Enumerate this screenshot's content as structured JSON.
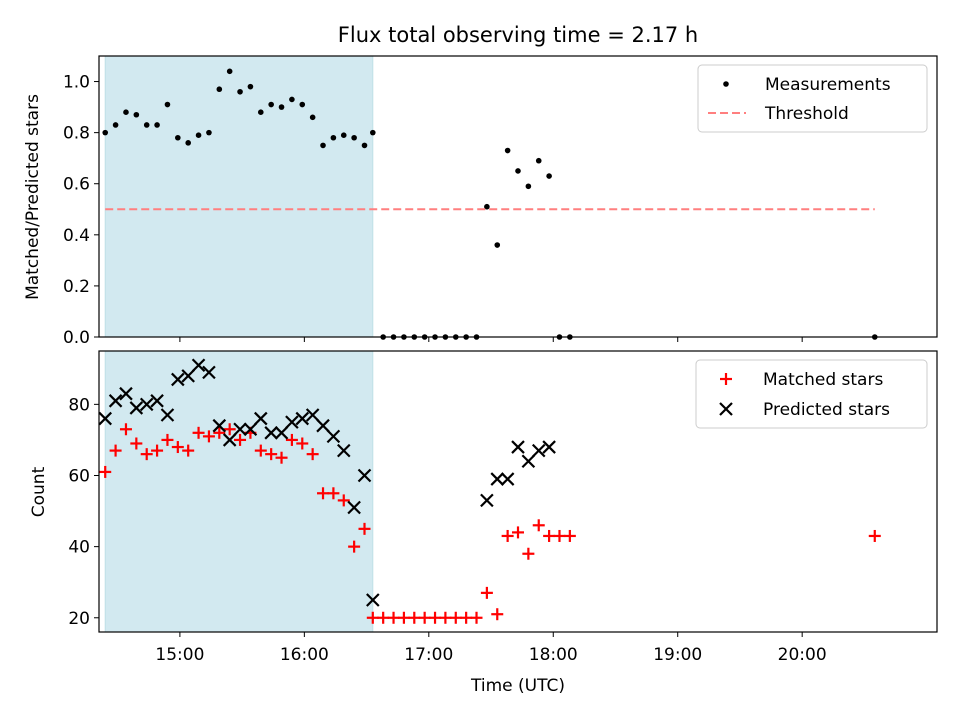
{
  "figure": {
    "title": "Flux total observing time = 2.17 h"
  },
  "chart_data": [
    {
      "type": "scatter",
      "ylabel": "Matched/Predicted stars",
      "xlim": [
        "14:21",
        "21:05"
      ],
      "ylim": [
        0,
        1.1
      ],
      "yticks": [
        "0.0",
        "0.2",
        "0.4",
        "0.6",
        "0.8",
        "1.0"
      ],
      "grid": false,
      "legend_position": "top-right",
      "shaded_region": {
        "x_start": "14:24",
        "x_end": "16:33",
        "color": "#d2e9f0"
      },
      "series": [
        {
          "name": "Measurements",
          "marker": "dot",
          "color": "#000000",
          "points": [
            [
              "14:24",
              0.8
            ],
            [
              "14:29",
              0.83
            ],
            [
              "14:34",
              0.88
            ],
            [
              "14:39",
              0.87
            ],
            [
              "14:44",
              0.83
            ],
            [
              "14:49",
              0.83
            ],
            [
              "14:54",
              0.91
            ],
            [
              "14:59",
              0.78
            ],
            [
              "15:04",
              0.76
            ],
            [
              "15:09",
              0.79
            ],
            [
              "15:14",
              0.8
            ],
            [
              "15:19",
              0.97
            ],
            [
              "15:24",
              1.04
            ],
            [
              "15:29",
              0.96
            ],
            [
              "15:34",
              0.98
            ],
            [
              "15:39",
              0.88
            ],
            [
              "15:44",
              0.91
            ],
            [
              "15:49",
              0.9
            ],
            [
              "15:54",
              0.93
            ],
            [
              "15:59",
              0.91
            ],
            [
              "16:04",
              0.86
            ],
            [
              "16:09",
              0.75
            ],
            [
              "16:14",
              0.78
            ],
            [
              "16:19",
              0.79
            ],
            [
              "16:24",
              0.78
            ],
            [
              "16:29",
              0.75
            ],
            [
              "16:33",
              0.8
            ],
            [
              "16:38",
              0.0
            ],
            [
              "16:43",
              0.0
            ],
            [
              "16:48",
              0.0
            ],
            [
              "16:53",
              0.0
            ],
            [
              "16:58",
              0.0
            ],
            [
              "17:03",
              0.0
            ],
            [
              "17:08",
              0.0
            ],
            [
              "17:13",
              0.0
            ],
            [
              "17:18",
              0.0
            ],
            [
              "17:23",
              0.0
            ],
            [
              "17:28",
              0.51
            ],
            [
              "17:33",
              0.36
            ],
            [
              "17:38",
              0.73
            ],
            [
              "17:43",
              0.65
            ],
            [
              "17:48",
              0.59
            ],
            [
              "17:53",
              0.69
            ],
            [
              "17:58",
              0.63
            ],
            [
              "18:03",
              0.0
            ],
            [
              "18:08",
              0.0
            ],
            [
              "20:35",
              0.0
            ]
          ]
        },
        {
          "name": "Threshold",
          "style": "dashed",
          "color": "#ff7f7f",
          "x": [
            "14:24",
            "20:35"
          ],
          "y": [
            0.5,
            0.5
          ]
        }
      ]
    },
    {
      "type": "scatter",
      "xlabel": "Time (UTC)",
      "ylabel": "Count",
      "xlim": [
        "14:21",
        "21:05"
      ],
      "ylim": [
        16,
        95
      ],
      "xticks": [
        "15:00",
        "16:00",
        "17:00",
        "18:00",
        "19:00",
        "20:00"
      ],
      "yticks": [
        "20",
        "40",
        "60",
        "80"
      ],
      "grid": false,
      "legend_position": "top-right",
      "shaded_region": {
        "x_start": "14:24",
        "x_end": "16:33",
        "color": "#d2e9f0"
      },
      "series": [
        {
          "name": "Matched stars",
          "marker": "plus",
          "color": "#ff0000",
          "points": [
            [
              "14:24",
              61
            ],
            [
              "14:29",
              67
            ],
            [
              "14:34",
              73
            ],
            [
              "14:39",
              69
            ],
            [
              "14:44",
              66
            ],
            [
              "14:49",
              67
            ],
            [
              "14:54",
              70
            ],
            [
              "14:59",
              68
            ],
            [
              "15:04",
              67
            ],
            [
              "15:09",
              72
            ],
            [
              "15:14",
              71
            ],
            [
              "15:19",
              72
            ],
            [
              "15:24",
              73
            ],
            [
              "15:29",
              70
            ],
            [
              "15:34",
              72
            ],
            [
              "15:39",
              67
            ],
            [
              "15:44",
              66
            ],
            [
              "15:49",
              65
            ],
            [
              "15:54",
              70
            ],
            [
              "15:59",
              69
            ],
            [
              "16:04",
              66
            ],
            [
              "16:09",
              55
            ],
            [
              "16:14",
              55
            ],
            [
              "16:19",
              53
            ],
            [
              "16:24",
              40
            ],
            [
              "16:29",
              45
            ],
            [
              "16:33",
              20
            ],
            [
              "16:38",
              20
            ],
            [
              "16:43",
              20
            ],
            [
              "16:48",
              20
            ],
            [
              "16:53",
              20
            ],
            [
              "16:58",
              20
            ],
            [
              "17:03",
              20
            ],
            [
              "17:08",
              20
            ],
            [
              "17:13",
              20
            ],
            [
              "17:18",
              20
            ],
            [
              "17:23",
              20
            ],
            [
              "17:28",
              27
            ],
            [
              "17:33",
              21
            ],
            [
              "17:38",
              43
            ],
            [
              "17:43",
              44
            ],
            [
              "17:48",
              38
            ],
            [
              "17:53",
              46
            ],
            [
              "17:58",
              43
            ],
            [
              "18:03",
              43
            ],
            [
              "18:08",
              43
            ],
            [
              "20:35",
              43
            ]
          ]
        },
        {
          "name": "Predicted stars",
          "marker": "x",
          "color": "#000000",
          "points": [
            [
              "14:24",
              76
            ],
            [
              "14:29",
              81
            ],
            [
              "14:34",
              83
            ],
            [
              "14:39",
              79
            ],
            [
              "14:44",
              80
            ],
            [
              "14:49",
              81
            ],
            [
              "14:54",
              77
            ],
            [
              "14:59",
              87
            ],
            [
              "15:04",
              88
            ],
            [
              "15:09",
              91
            ],
            [
              "15:14",
              89
            ],
            [
              "15:19",
              74
            ],
            [
              "15:24",
              70
            ],
            [
              "15:29",
              73
            ],
            [
              "15:34",
              73
            ],
            [
              "15:39",
              76
            ],
            [
              "15:44",
              72
            ],
            [
              "15:49",
              72
            ],
            [
              "15:54",
              75
            ],
            [
              "15:59",
              76
            ],
            [
              "16:04",
              77
            ],
            [
              "16:09",
              74
            ],
            [
              "16:14",
              71
            ],
            [
              "16:19",
              67
            ],
            [
              "16:24",
              51
            ],
            [
              "16:29",
              60
            ],
            [
              "16:33",
              25
            ],
            [
              "17:28",
              53
            ],
            [
              "17:33",
              59
            ],
            [
              "17:38",
              59
            ],
            [
              "17:43",
              68
            ],
            [
              "17:48",
              64
            ],
            [
              "17:53",
              67
            ],
            [
              "17:58",
              68
            ]
          ]
        }
      ]
    }
  ]
}
